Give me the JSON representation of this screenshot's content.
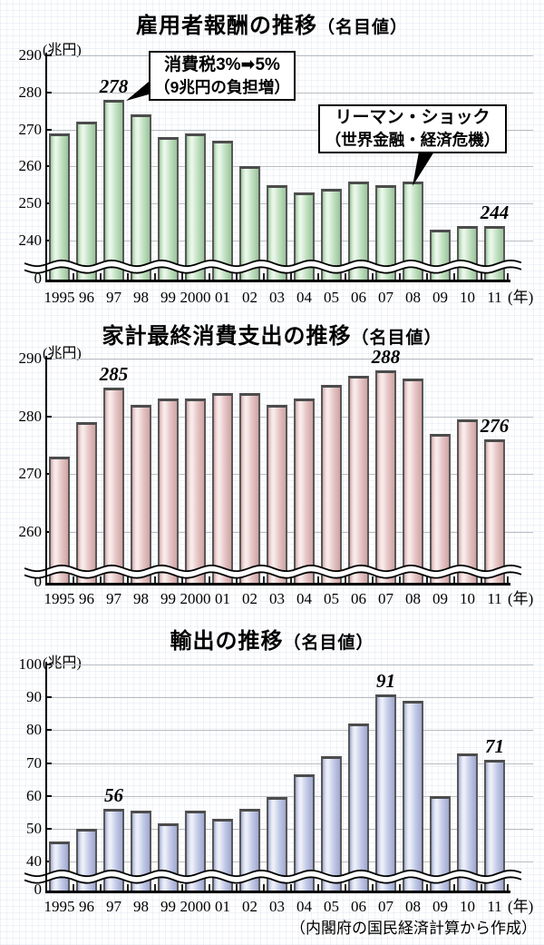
{
  "caption": "（内閣府の国民経済計算から作成）",
  "axis_break": true,
  "colors": {
    "green_bar": "#b9ddb9",
    "pink_bar": "#ecc6c6",
    "blue_bar": "#bcc3e6",
    "bar_border": "#585858",
    "gridline": "#b9bdc2"
  },
  "chart_data": [
    {
      "type": "bar",
      "title": "雇用者報酬の推移",
      "title_suffix": "（名目値）",
      "unit_label": "(兆円)",
      "year_suffix": "(年)",
      "categories": [
        "1995",
        "96",
        "97",
        "98",
        "99",
        "2000",
        "01",
        "02",
        "03",
        "04",
        "05",
        "06",
        "07",
        "08",
        "09",
        "10",
        "11"
      ],
      "values": [
        269,
        272,
        278,
        274,
        268,
        269,
        267,
        260,
        255,
        253,
        254,
        256,
        255,
        256,
        243,
        244,
        244
      ],
      "yticks": [
        290,
        280,
        270,
        260,
        250,
        240
      ],
      "zero_label": "0",
      "ylim": [
        240,
        290
      ],
      "bar_color": "#b9ddb9",
      "point_labels": [
        {
          "index": 2,
          "label": "278"
        },
        {
          "index": 16,
          "label": "244"
        }
      ],
      "annotations": [
        {
          "line1": "消費税3%➡5%",
          "line2": "（9兆円の負担増）",
          "target_year": "97"
        },
        {
          "line1": "リーマン・ショック",
          "line2": "（世界金融・経済危機）",
          "target_year": "08"
        }
      ]
    },
    {
      "type": "bar",
      "title": "家計最終消費支出の推移",
      "title_suffix": "（名目値）",
      "unit_label": "(兆円)",
      "year_suffix": "(年)",
      "categories": [
        "1995",
        "96",
        "97",
        "98",
        "99",
        "2000",
        "01",
        "02",
        "03",
        "04",
        "05",
        "06",
        "07",
        "08",
        "09",
        "10",
        "11"
      ],
      "values": [
        273,
        279,
        285,
        282,
        283,
        283,
        284,
        284,
        282,
        283,
        285.5,
        287,
        288,
        286.5,
        277,
        279.5,
        276
      ],
      "yticks": [
        290,
        280,
        270,
        260
      ],
      "zero_label": "0",
      "ylim": [
        260,
        290
      ],
      "bar_color": "#ecc6c6",
      "point_labels": [
        {
          "index": 2,
          "label": "285"
        },
        {
          "index": 12,
          "label": "288"
        },
        {
          "index": 16,
          "label": "276"
        }
      ],
      "annotations": []
    },
    {
      "type": "bar",
      "title": "輸出の推移",
      "title_suffix": "（名目値）",
      "unit_label": "(兆円)",
      "year_suffix": "(年)",
      "categories": [
        "1995",
        "96",
        "97",
        "98",
        "99",
        "2000",
        "01",
        "02",
        "03",
        "04",
        "05",
        "06",
        "07",
        "08",
        "09",
        "10",
        "11"
      ],
      "values": [
        46,
        50,
        56,
        55.5,
        51.5,
        55.5,
        53,
        56,
        59.5,
        66.5,
        72,
        82,
        91,
        89,
        60,
        73,
        71
      ],
      "yticks": [
        100,
        90,
        80,
        70,
        60,
        50,
        40
      ],
      "zero_label": "0",
      "ylim": [
        40,
        100
      ],
      "bar_color": "#bcc3e6",
      "point_labels": [
        {
          "index": 2,
          "label": "56"
        },
        {
          "index": 12,
          "label": "91"
        },
        {
          "index": 16,
          "label": "71"
        }
      ],
      "annotations": []
    }
  ]
}
